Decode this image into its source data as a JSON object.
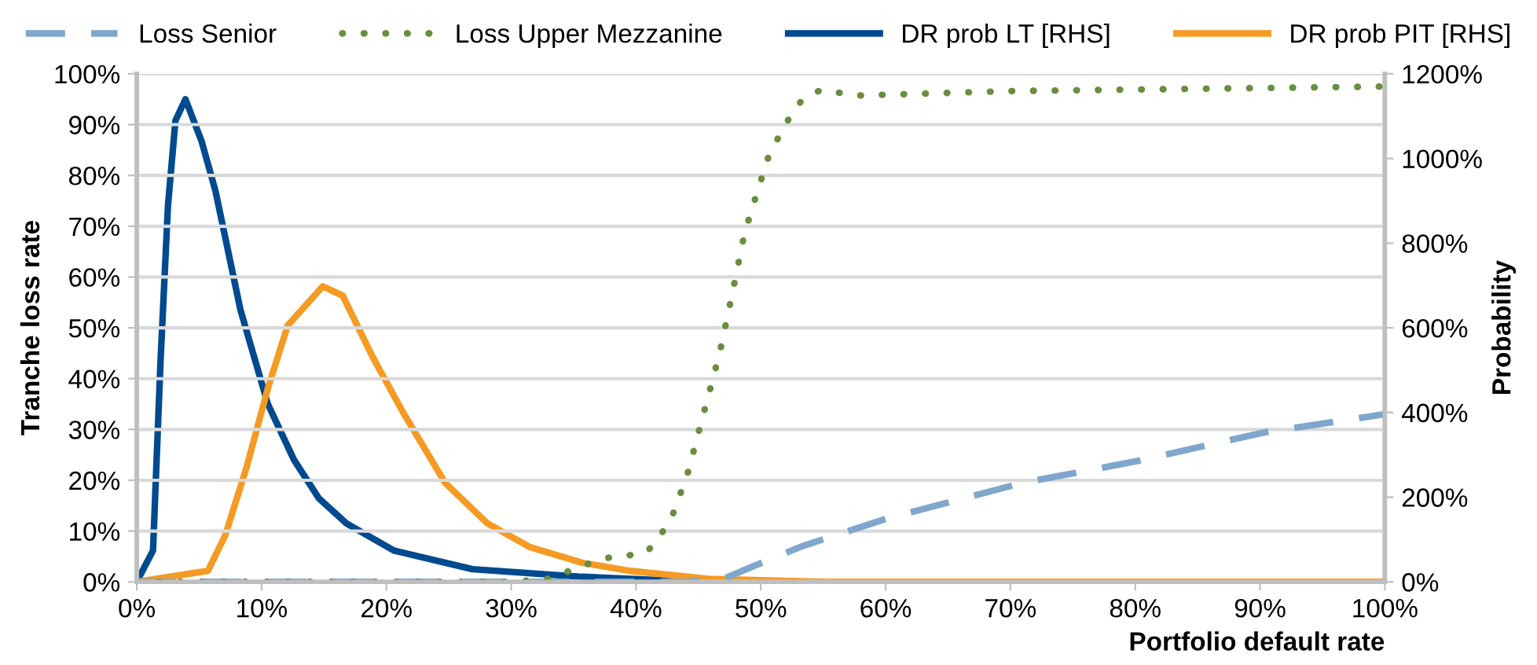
{
  "chart_data": {
    "type": "line",
    "xlabel": "Portfolio default rate",
    "ylabel": "Tranche loss rate",
    "y2label": "Probability",
    "legend": "top",
    "grid": "y",
    "marker": "none",
    "xlim": [
      0,
      100
    ],
    "xticks": [
      {
        "value": 0,
        "label": "0%"
      },
      {
        "value": 10,
        "label": "10%"
      },
      {
        "value": 20,
        "label": "20%"
      },
      {
        "value": 30,
        "label": "30%"
      },
      {
        "value": 40,
        "label": "40%"
      },
      {
        "value": 50,
        "label": "50%"
      },
      {
        "value": 60,
        "label": "60%"
      },
      {
        "value": 70,
        "label": "70%"
      },
      {
        "value": 80,
        "label": "80%"
      },
      {
        "value": 90,
        "label": "90%"
      },
      {
        "value": 100,
        "label": "100%"
      }
    ],
    "ylim": [
      0,
      100
    ],
    "yticks": [
      {
        "value": 0,
        "label": "0%"
      },
      {
        "value": 10,
        "label": "10%"
      },
      {
        "value": 20,
        "label": "20%"
      },
      {
        "value": 30,
        "label": "30%"
      },
      {
        "value": 40,
        "label": "40%"
      },
      {
        "value": 50,
        "label": "50%"
      },
      {
        "value": 60,
        "label": "60%"
      },
      {
        "value": 70,
        "label": "70%"
      },
      {
        "value": 80,
        "label": "80%"
      },
      {
        "value": 90,
        "label": "90%"
      },
      {
        "value": 100,
        "label": "100%"
      }
    ],
    "y2lim": [
      0,
      1200
    ],
    "y2ticks": [
      {
        "value": 0,
        "label": "0%"
      },
      {
        "value": 200,
        "label": "200%"
      },
      {
        "value": 400,
        "label": "400%"
      },
      {
        "value": 600,
        "label": "600%"
      },
      {
        "value": 800,
        "label": "800%"
      },
      {
        "value": 1000,
        "label": "1000%"
      },
      {
        "value": 1200,
        "label": "1200%"
      }
    ],
    "series": [
      {
        "name": "Loss Senior",
        "color": "#7fa7cb",
        "line_style": "dashed",
        "x": [
          0,
          10,
          20,
          30,
          40,
          44,
          47,
          50,
          53.3,
          60,
          71,
          80.2,
          90.3,
          100
        ],
        "values": [
          0,
          0,
          0,
          0,
          0,
          0,
          0.6,
          3.7,
          7,
          12.4,
          19.5,
          23.8,
          29.4,
          33
        ]
      },
      {
        "name": "Loss Upper Mezzanine",
        "color": "#6a8e3f",
        "line_style": "dotted",
        "x": [
          0,
          10,
          20,
          30,
          33,
          37.3,
          40.7,
          41.6,
          42.9,
          44.1,
          45.4,
          46.7,
          47.7,
          48.7,
          49.8,
          50.6,
          51.7,
          52.9,
          53.9,
          55,
          57.5,
          70,
          100
        ],
        "values": [
          0,
          0,
          0,
          0,
          0.6,
          4.6,
          5.6,
          7.7,
          13,
          21,
          33,
          45,
          56.6,
          68.7,
          77.4,
          83.6,
          88.9,
          93.8,
          96,
          96.9,
          95.7,
          96.6,
          97.5
        ]
      },
      {
        "name": "DR prob LT [RHS]",
        "color": "#004a8f",
        "line_style": "solid",
        "axis": "y2",
        "x": [
          0,
          1.3,
          1.9,
          2.5,
          3.1,
          3.9,
          5.2,
          6.3,
          8.3,
          10.5,
          12.6,
          14.6,
          16.8,
          20.6,
          26.9,
          35.7,
          45,
          100
        ],
        "values": [
          0,
          74,
          520,
          890,
          1090,
          1140,
          1040,
          924,
          643,
          420,
          288,
          197,
          138,
          74,
          30,
          12,
          0,
          0
        ]
      },
      {
        "name": "DR prob PIT [RHS]",
        "color": "#f59a23",
        "line_style": "solid",
        "axis": "y2",
        "x": [
          0,
          5.7,
          7.1,
          8.8,
          10.5,
          12.1,
          14.9,
          16.5,
          18.9,
          21.4,
          24.7,
          28.1,
          31.5,
          35.7,
          39.5,
          45.8,
          55,
          100
        ],
        "values": [
          0,
          26,
          111,
          271,
          457,
          606,
          698,
          676,
          531,
          397,
          234,
          138,
          82,
          45,
          26,
          7,
          0,
          0
        ]
      }
    ]
  }
}
